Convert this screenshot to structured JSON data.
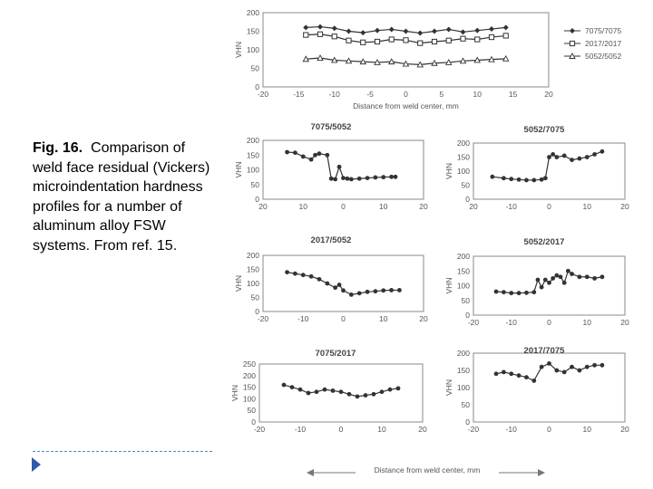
{
  "caption": {
    "label": "Fig. 16.",
    "text": "Comparison of weld face residual (Vickers) microindentation hardness profiles for a number of aluminum alloy FSW systems. From ref. 15."
  },
  "colors": {
    "accent": "#2e5aa8",
    "rule": "#4f86c6",
    "ink": "#444444"
  },
  "bottom_axis_label": "Distance from weld center, mm",
  "chart_data": [
    {
      "type": "scatter",
      "title": "",
      "xlabel": "Distance from weld center, mm",
      "ylabel": "VHN",
      "xlim": [
        -20,
        20
      ],
      "ylim": [
        0,
        200
      ],
      "xticks": [
        "-20",
        "-15",
        "-10",
        "-5",
        "0",
        "5",
        "10",
        "15",
        "20"
      ],
      "yticks": [
        "0",
        "50",
        "100",
        "150",
        "200"
      ],
      "legend": "right",
      "series": [
        {
          "name": "7075/7075",
          "marker": "diamond",
          "x": [
            -14,
            -12,
            -10,
            -8,
            -6,
            -4,
            -2,
            0,
            2,
            4,
            6,
            8,
            10,
            12,
            14
          ],
          "y": [
            160,
            162,
            158,
            150,
            146,
            152,
            155,
            150,
            145,
            150,
            155,
            148,
            152,
            156,
            160
          ]
        },
        {
          "name": "2017/2017",
          "marker": "square",
          "x": [
            -14,
            -12,
            -10,
            -8,
            -6,
            -4,
            -2,
            0,
            2,
            4,
            6,
            8,
            10,
            12,
            14
          ],
          "y": [
            140,
            142,
            136,
            125,
            120,
            122,
            128,
            126,
            118,
            122,
            125,
            130,
            128,
            134,
            138
          ]
        },
        {
          "name": "5052/5052",
          "marker": "triangle",
          "x": [
            -14,
            -12,
            -10,
            -8,
            -6,
            -4,
            -2,
            0,
            2,
            4,
            6,
            8,
            10,
            12,
            14
          ],
          "y": [
            75,
            78,
            72,
            70,
            68,
            66,
            68,
            62,
            60,
            64,
            66,
            70,
            72,
            74,
            76
          ]
        }
      ]
    },
    {
      "type": "line",
      "title": "7075/5052",
      "ylabel": "VHN",
      "xlim": [
        -20,
        20
      ],
      "ylim": [
        0,
        200
      ],
      "xticks": [
        "20",
        "10",
        "0",
        "10",
        "20"
      ],
      "yticks": [
        "0",
        "50",
        "100",
        "150",
        "200"
      ],
      "series": [
        {
          "x": [
            -14,
            -12,
            -10,
            -8,
            -7,
            -6,
            -4,
            -3,
            -2,
            -1,
            0,
            1,
            2,
            4,
            6,
            8,
            10,
            12,
            13
          ],
          "y": [
            160,
            158,
            145,
            135,
            150,
            155,
            150,
            70,
            68,
            110,
            72,
            70,
            68,
            70,
            72,
            74,
            75,
            76,
            76
          ]
        }
      ]
    },
    {
      "type": "line",
      "title": "5052/7075",
      "ylabel": "VHN",
      "xlim": [
        -20,
        20
      ],
      "ylim": [
        0,
        200
      ],
      "xticks": [
        "20",
        "-10",
        "0",
        "10",
        "20"
      ],
      "yticks": [
        "0",
        "50",
        "100",
        "150",
        "200"
      ],
      "series": [
        {
          "x": [
            -15,
            -12,
            -10,
            -8,
            -6,
            -4,
            -2,
            -1,
            0,
            1,
            2,
            4,
            6,
            8,
            10,
            12,
            14
          ],
          "y": [
            80,
            75,
            72,
            70,
            68,
            68,
            70,
            75,
            150,
            160,
            150,
            155,
            140,
            145,
            150,
            160,
            170
          ]
        }
      ]
    },
    {
      "type": "line",
      "title": "2017/5052",
      "ylabel": "VHN",
      "xlim": [
        -20,
        20
      ],
      "ylim": [
        0,
        200
      ],
      "xticks": [
        "-20",
        "-10",
        "0",
        "10",
        "20"
      ],
      "yticks": [
        "0",
        "50",
        "100",
        "150",
        "200"
      ],
      "series": [
        {
          "x": [
            -14,
            -12,
            -10,
            -8,
            -6,
            -4,
            -2,
            -1,
            0,
            2,
            4,
            6,
            8,
            10,
            12,
            14
          ],
          "y": [
            140,
            135,
            130,
            125,
            115,
            100,
            85,
            95,
            75,
            60,
            65,
            70,
            72,
            75,
            76,
            76
          ]
        }
      ]
    },
    {
      "type": "line",
      "title": "5052/2017",
      "ylabel": "VHN",
      "xlim": [
        -20,
        20
      ],
      "ylim": [
        0,
        200
      ],
      "xticks": [
        "-20",
        "-10",
        "0",
        "10",
        "20"
      ],
      "yticks": [
        "0",
        "50",
        "100",
        "150",
        "200"
      ],
      "series": [
        {
          "x": [
            -14,
            -12,
            -10,
            -8,
            -6,
            -4,
            -3,
            -2,
            -1,
            0,
            1,
            2,
            3,
            4,
            5,
            6,
            8,
            10,
            12,
            14
          ],
          "y": [
            80,
            78,
            75,
            75,
            76,
            78,
            120,
            95,
            120,
            110,
            125,
            135,
            130,
            110,
            150,
            140,
            130,
            130,
            125,
            130
          ]
        }
      ]
    },
    {
      "type": "line",
      "title": "7075/2017",
      "ylabel": "VHN",
      "xlim": [
        -20,
        20
      ],
      "ylim": [
        0,
        250
      ],
      "xticks": [
        "-20",
        "-10",
        "0",
        "10",
        "20"
      ],
      "yticks": [
        "0",
        "50",
        "100",
        "150",
        "200",
        "250"
      ],
      "series": [
        {
          "x": [
            -14,
            -12,
            -10,
            -8,
            -6,
            -4,
            -2,
            0,
            2,
            4,
            6,
            8,
            10,
            12,
            14
          ],
          "y": [
            160,
            150,
            140,
            125,
            130,
            140,
            135,
            130,
            120,
            110,
            115,
            120,
            130,
            140,
            145
          ]
        }
      ]
    },
    {
      "type": "line",
      "title": "2017/7075",
      "ylabel": "VHN",
      "xlim": [
        -20,
        20
      ],
      "ylim": [
        0,
        200
      ],
      "xticks": [
        "-20",
        "-10",
        "0",
        "10",
        "20"
      ],
      "yticks": [
        "0",
        "50",
        "100",
        "150",
        "200"
      ],
      "series": [
        {
          "x": [
            -14,
            -12,
            -10,
            -8,
            -6,
            -4,
            -2,
            0,
            2,
            4,
            6,
            8,
            10,
            12,
            14
          ],
          "y": [
            140,
            145,
            140,
            135,
            130,
            120,
            160,
            170,
            150,
            145,
            160,
            150,
            160,
            165,
            165
          ]
        }
      ]
    }
  ]
}
